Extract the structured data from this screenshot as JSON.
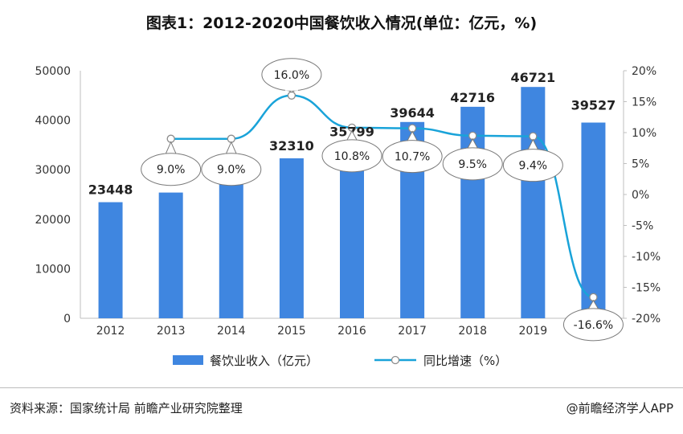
{
  "title": "图表1：2012-2020中国餐饮收入情况(单位：亿元，%)",
  "chart_data": {
    "type": "bar+line",
    "categories": [
      "2012",
      "2013",
      "2014",
      "2015",
      "2016",
      "2017",
      "2018",
      "2019",
      "2020"
    ],
    "series": [
      {
        "name": "餐饮业收入（亿元）",
        "type": "bar",
        "axis": "left",
        "color": "#3f86e0",
        "values": [
          23448,
          25392,
          27860,
          32310,
          35799,
          39644,
          42716,
          46721,
          39527
        ],
        "labels": [
          "23448",
          "",
          "",
          "32310",
          "35799",
          "39644",
          "42716",
          "46721",
          "39527"
        ]
      },
      {
        "name": "同比增速（%）",
        "type": "line",
        "axis": "right",
        "color": "#19a3d9",
        "values": [
          null,
          9.0,
          9.0,
          16.0,
          10.8,
          10.7,
          9.5,
          9.4,
          -16.6
        ],
        "labels": [
          "",
          "9.0%",
          "9.0%",
          "16.0%",
          "10.8%",
          "10.7%",
          "9.5%",
          "9.4%",
          "-16.6%"
        ]
      }
    ],
    "y_left": {
      "min": 0,
      "max": 50000,
      "ticks": [
        "0",
        "10000",
        "20000",
        "30000",
        "40000",
        "50000"
      ]
    },
    "y_right": {
      "min": -20,
      "max": 20,
      "ticks": [
        "-20%",
        "-15%",
        "-10%",
        "-5%",
        "0%",
        "5%",
        "10%",
        "15%",
        "20%"
      ]
    },
    "grid": false,
    "legend": "bottom"
  },
  "footer": {
    "source": "资料来源：国家统计局 前瞻产业研究院整理",
    "brand": "@前瞻经济学人APP"
  }
}
